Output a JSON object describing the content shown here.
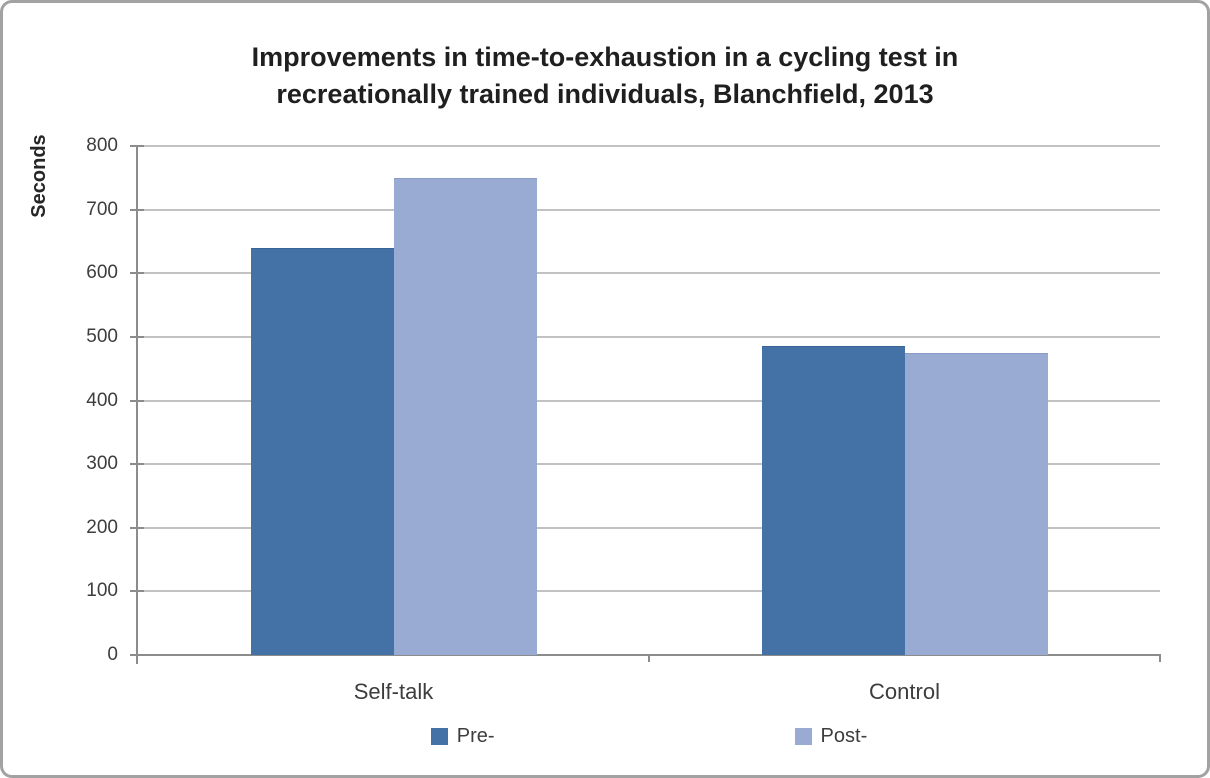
{
  "frame": {
    "background": "#ffffff",
    "border_color": "#a2a2a2"
  },
  "title": {
    "line1": "Improvements in time-to-exhaustion in a cycling test in",
    "line2": "recreationally trained individuals, Blanchfield, 2013",
    "color": "#1f1f1f"
  },
  "chart_data": {
    "type": "bar",
    "title": "Improvements in time-to-exhaustion in a cycling test in recreationally trained individuals, Blanchfield, 2013",
    "ylabel": "Seconds",
    "xlabel": "",
    "ylim": [
      0,
      800
    ],
    "yticks": [
      0,
      100,
      200,
      300,
      400,
      500,
      600,
      700,
      800
    ],
    "grid": true,
    "legend_position": "bottom",
    "categories": [
      "Self-talk",
      "Control"
    ],
    "series": [
      {
        "name": "Pre-",
        "color": "#4472a7",
        "edge_color": "#3a6397",
        "values": [
          640,
          485
        ]
      },
      {
        "name": "Post-",
        "color": "#99aad3",
        "edge_color": "#8a9cc6",
        "values": [
          750,
          475
        ]
      }
    ],
    "axis_color": "#8c8c8c",
    "grid_color": "#c2c2c2",
    "tick_label_color": "#3d3d3d",
    "category_label_color": "#3d3d3d",
    "legend_label_color": "#3d3d3d"
  }
}
